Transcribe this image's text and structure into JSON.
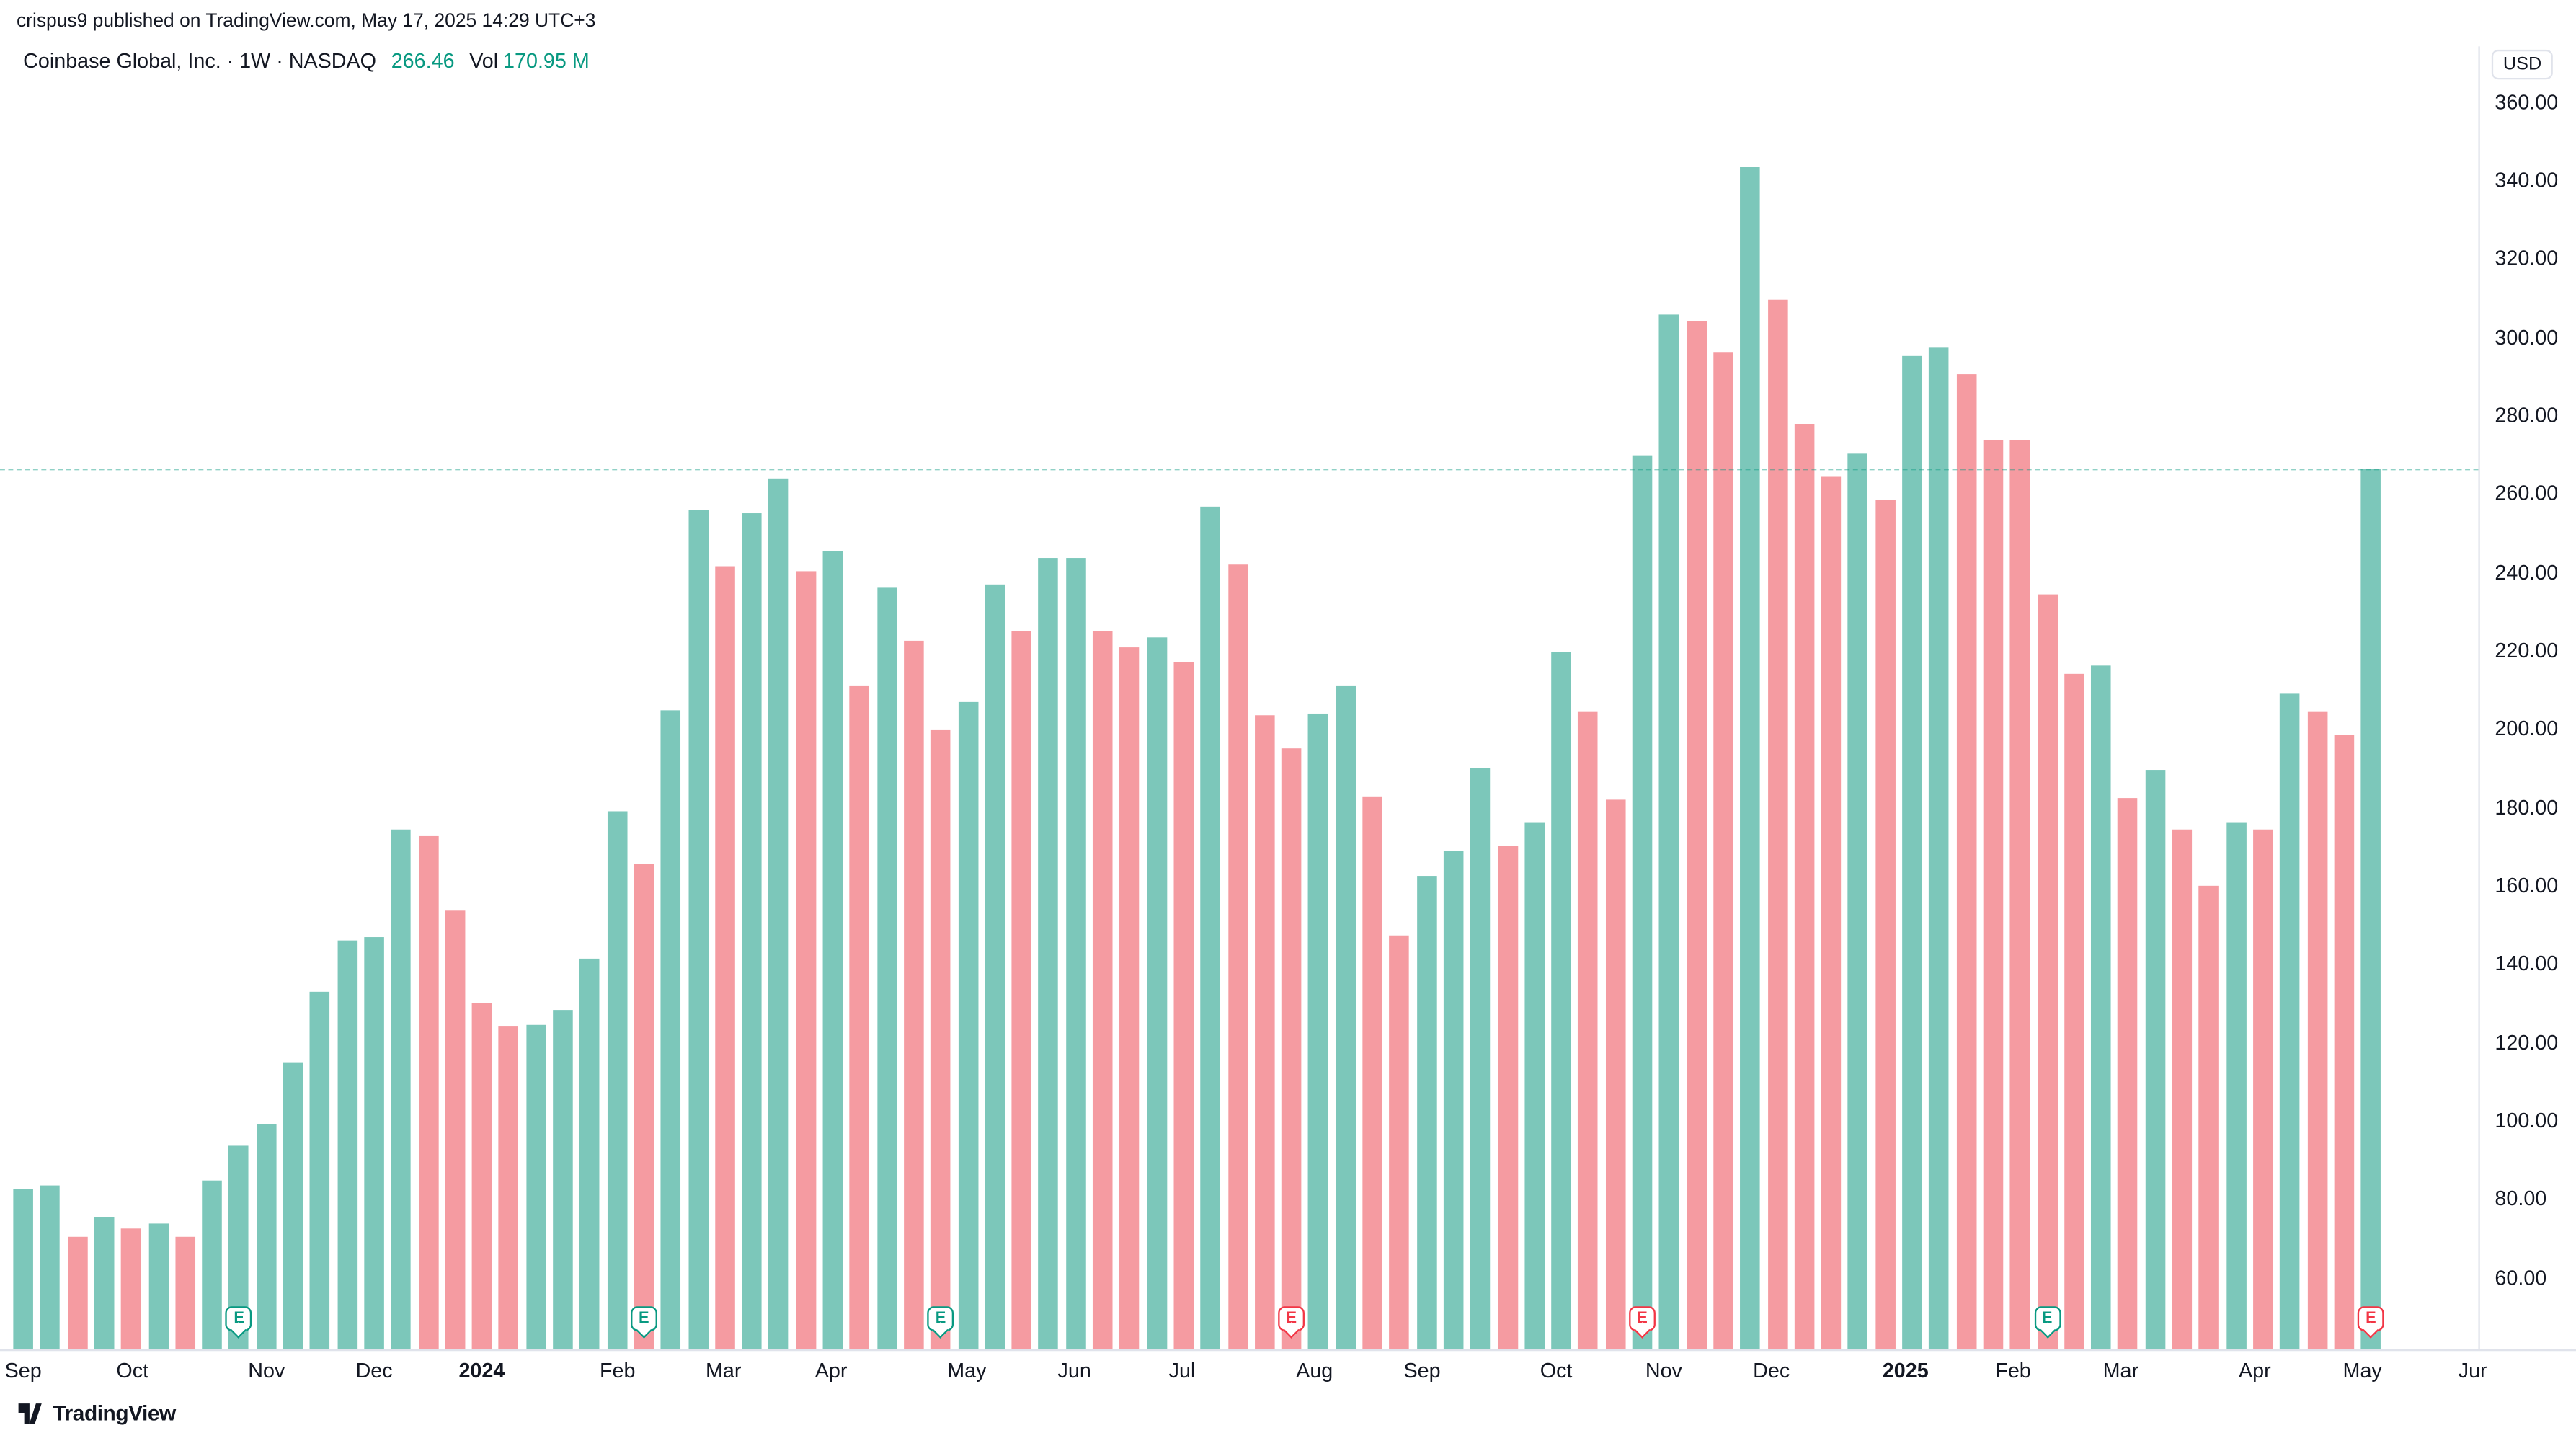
{
  "attribution": "crispus9 published on TradingView.com, May 17, 2025 14:29 UTC+3",
  "header": {
    "symbol_line": "Coinbase Global, Inc. · 1W · NASDAQ",
    "price": "266.46",
    "vol_label": "Vol",
    "vol_value": "170.95 M"
  },
  "footer": {
    "brand": "TradingView"
  },
  "colors": {
    "up": "#7cc7ba",
    "down": "#f59ba1",
    "accent_up": "#089981",
    "accent_down": "#f23645",
    "text": "#131722",
    "grid": "#e0e3eb"
  },
  "axis": {
    "currency": "USD",
    "price_ticks": [
      360,
      340,
      320,
      300,
      280,
      260,
      240,
      220,
      200,
      180,
      160,
      140,
      120,
      100,
      80,
      60
    ],
    "time_ticks": [
      {
        "label": "Sep",
        "x": 14,
        "bold": false
      },
      {
        "label": "Oct",
        "x": 80,
        "bold": false
      },
      {
        "label": "Nov",
        "x": 161,
        "bold": false
      },
      {
        "label": "Dec",
        "x": 226,
        "bold": false
      },
      {
        "label": "2024",
        "x": 291,
        "bold": true
      },
      {
        "label": "Feb",
        "x": 373,
        "bold": false
      },
      {
        "label": "Mar",
        "x": 437,
        "bold": false
      },
      {
        "label": "Apr",
        "x": 502,
        "bold": false
      },
      {
        "label": "May",
        "x": 584,
        "bold": false
      },
      {
        "label": "Jun",
        "x": 649,
        "bold": false
      },
      {
        "label": "Jul",
        "x": 714,
        "bold": false
      },
      {
        "label": "Aug",
        "x": 794,
        "bold": false
      },
      {
        "label": "Sep",
        "x": 859,
        "bold": false
      },
      {
        "label": "Oct",
        "x": 940,
        "bold": false
      },
      {
        "label": "Nov",
        "x": 1005,
        "bold": false
      },
      {
        "label": "Dec",
        "x": 1070,
        "bold": false
      },
      {
        "label": "2025",
        "x": 1151,
        "bold": true
      },
      {
        "label": "Feb",
        "x": 1216,
        "bold": false
      },
      {
        "label": "Mar",
        "x": 1281,
        "bold": false
      },
      {
        "label": "Apr",
        "x": 1362,
        "bold": false
      },
      {
        "label": "May",
        "x": 1427,
        "bold": false
      },
      {
        "label": "Jun",
        "x": 1495,
        "bold": false
      }
    ]
  },
  "chart_data": {
    "type": "bar",
    "title": "Coinbase Global, Inc. · 1W · NASDAQ — weekly close columns",
    "interval": "1W",
    "x_range": "Sep 2023 – May 2025, one column per week",
    "ylabel": "USD",
    "ylim": [
      42,
      375
    ],
    "last_price": 266.46,
    "earnings_glyph": "E",
    "bars": [
      {
        "close": 83.0,
        "dir": "up"
      },
      {
        "close": 83.6,
        "dir": "up"
      },
      {
        "close": 70.5,
        "dir": "down"
      },
      {
        "close": 75.6,
        "dir": "up"
      },
      {
        "close": 72.6,
        "dir": "down"
      },
      {
        "close": 74.0,
        "dir": "up"
      },
      {
        "close": 70.6,
        "dir": "down"
      },
      {
        "close": 84.8,
        "dir": "up"
      },
      {
        "close": 94.0,
        "dir": "up"
      },
      {
        "close": 99.3,
        "dir": "up"
      },
      {
        "close": 115.0,
        "dir": "up"
      },
      {
        "close": 133.0,
        "dir": "up"
      },
      {
        "close": 146.0,
        "dir": "up"
      },
      {
        "close": 147.2,
        "dir": "up"
      },
      {
        "close": 174.7,
        "dir": "up"
      },
      {
        "close": 172.8,
        "dir": "down"
      },
      {
        "close": 153.6,
        "dir": "down"
      },
      {
        "close": 130.0,
        "dir": "down"
      },
      {
        "close": 124.2,
        "dir": "down"
      },
      {
        "close": 124.8,
        "dir": "up"
      },
      {
        "close": 128.6,
        "dir": "up"
      },
      {
        "close": 141.6,
        "dir": "up"
      },
      {
        "close": 179.2,
        "dir": "up"
      },
      {
        "close": 165.6,
        "dir": "down"
      },
      {
        "close": 205.0,
        "dir": "up"
      },
      {
        "close": 256.0,
        "dir": "up"
      },
      {
        "close": 241.6,
        "dir": "down"
      },
      {
        "close": 255.2,
        "dir": "up"
      },
      {
        "close": 264.2,
        "dir": "up"
      },
      {
        "close": 240.4,
        "dir": "down"
      },
      {
        "close": 245.3,
        "dir": "up"
      },
      {
        "close": 211.4,
        "dir": "down"
      },
      {
        "close": 236.2,
        "dir": "up"
      },
      {
        "close": 222.6,
        "dir": "down"
      },
      {
        "close": 200.0,
        "dir": "down"
      },
      {
        "close": 207.0,
        "dir": "up"
      },
      {
        "close": 237.0,
        "dir": "up"
      },
      {
        "close": 225.3,
        "dir": "down"
      },
      {
        "close": 243.7,
        "dir": "up"
      },
      {
        "close": 243.9,
        "dir": "up"
      },
      {
        "close": 225.3,
        "dir": "down"
      },
      {
        "close": 221.0,
        "dir": "down"
      },
      {
        "close": 223.6,
        "dir": "up"
      },
      {
        "close": 217.2,
        "dir": "down"
      },
      {
        "close": 257.0,
        "dir": "up"
      },
      {
        "close": 242.0,
        "dir": "down"
      },
      {
        "close": 203.6,
        "dir": "down"
      },
      {
        "close": 195.2,
        "dir": "down"
      },
      {
        "close": 204.2,
        "dir": "up"
      },
      {
        "close": 211.3,
        "dir": "up"
      },
      {
        "close": 183.0,
        "dir": "down"
      },
      {
        "close": 147.3,
        "dir": "down"
      },
      {
        "close": 162.7,
        "dir": "up"
      },
      {
        "close": 169.0,
        "dir": "up"
      },
      {
        "close": 190.0,
        "dir": "up"
      },
      {
        "close": 170.2,
        "dir": "down"
      },
      {
        "close": 176.3,
        "dir": "up"
      },
      {
        "close": 219.7,
        "dir": "up"
      },
      {
        "close": 204.3,
        "dir": "down"
      },
      {
        "close": 182.3,
        "dir": "down"
      },
      {
        "close": 270.2,
        "dir": "up"
      },
      {
        "close": 306.0,
        "dir": "up"
      },
      {
        "close": 304.2,
        "dir": "down"
      },
      {
        "close": 296.2,
        "dir": "down"
      },
      {
        "close": 343.6,
        "dir": "up"
      },
      {
        "close": 309.6,
        "dir": "down"
      },
      {
        "close": 278.2,
        "dir": "down"
      },
      {
        "close": 264.7,
        "dir": "down"
      },
      {
        "close": 270.3,
        "dir": "up"
      },
      {
        "close": 258.6,
        "dir": "down"
      },
      {
        "close": 295.3,
        "dir": "up"
      },
      {
        "close": 297.4,
        "dir": "up"
      },
      {
        "close": 290.6,
        "dir": "down"
      },
      {
        "close": 273.8,
        "dir": "down"
      },
      {
        "close": 273.8,
        "dir": "down"
      },
      {
        "close": 234.6,
        "dir": "down"
      },
      {
        "close": 214.2,
        "dir": "down"
      },
      {
        "close": 216.2,
        "dir": "up"
      },
      {
        "close": 182.6,
        "dir": "down"
      },
      {
        "close": 189.7,
        "dir": "up"
      },
      {
        "close": 174.3,
        "dir": "down"
      },
      {
        "close": 160.2,
        "dir": "down"
      },
      {
        "close": 176.4,
        "dir": "up"
      },
      {
        "close": 174.6,
        "dir": "down"
      },
      {
        "close": 209.3,
        "dir": "up"
      },
      {
        "close": 204.4,
        "dir": "down"
      },
      {
        "close": 198.6,
        "dir": "down"
      },
      {
        "close": 266.46,
        "dir": "up"
      }
    ],
    "earnings": [
      {
        "bar": 8,
        "result": "beat"
      },
      {
        "bar": 23,
        "result": "beat"
      },
      {
        "bar": 34,
        "result": "beat"
      },
      {
        "bar": 47,
        "result": "miss"
      },
      {
        "bar": 60,
        "result": "miss"
      },
      {
        "bar": 75,
        "result": "beat"
      },
      {
        "bar": 87,
        "result": "miss"
      }
    ]
  }
}
